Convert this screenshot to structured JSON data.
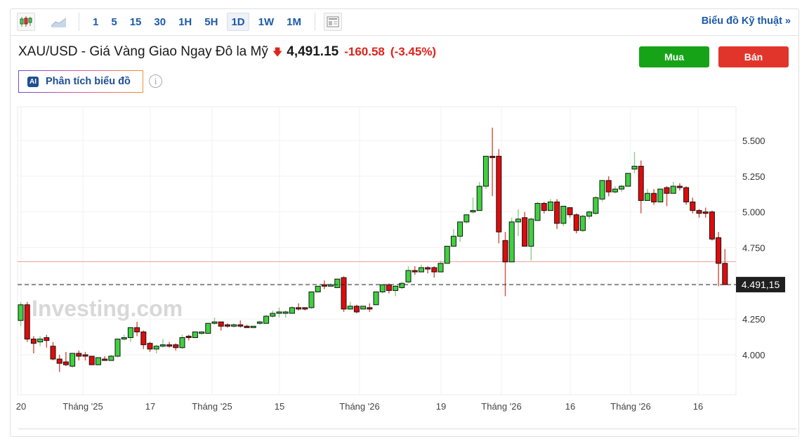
{
  "toolbar": {
    "chart_types": [
      "candlestick-icon",
      "area-chart-icon"
    ],
    "timeframes": [
      "1",
      "5",
      "15",
      "30",
      "1H",
      "5H",
      "1D",
      "1W",
      "1M"
    ],
    "active_timeframe": "1D",
    "technical_link": "Biểu đồ Kỹ thuật »"
  },
  "header": {
    "title": "XAU/USD - Giá Vàng Giao Ngay Đô la Mỹ",
    "price": "4,491.15",
    "change": "-160.58",
    "change_pct": "(-3.45%)",
    "buy_label": "Mua",
    "sell_label": "Bán",
    "ai_badge": "AI",
    "ai_label": "Phân tích biểu đồ",
    "info_icon": "i"
  },
  "colors": {
    "up": "#3fd13f",
    "down": "#e00b0b",
    "buy": "#17a317",
    "sell": "#e1352b",
    "link": "#1d5aa8"
  },
  "chart_data": {
    "type": "candlestick",
    "watermark": "Investing.com",
    "last_price_label": "4.491,15",
    "last_price": 4491.15,
    "previous_close": 4651.73,
    "ylim": [
      3800,
      5700
    ],
    "yticks": [
      {
        "v": 4000,
        "label": "4.000"
      },
      {
        "v": 4250,
        "label": "4.250"
      },
      {
        "v": 4500,
        "label": ""
      },
      {
        "v": 4750,
        "label": "4.750"
      },
      {
        "v": 5000,
        "label": "5.000"
      },
      {
        "v": 5250,
        "label": "5.250"
      },
      {
        "v": 5500,
        "label": "5.500"
      }
    ],
    "xlabels": [
      "20",
      "Tháng '25",
      "17",
      "Tháng '25",
      "15",
      "Tháng '26",
      "19",
      "Tháng '26",
      "16",
      "Tháng '26",
      "16"
    ],
    "candles_ohlc": [
      [
        4240,
        4370,
        4200,
        4350
      ],
      [
        4350,
        4370,
        4090,
        4110
      ],
      [
        4110,
        4130,
        4010,
        4080
      ],
      [
        4090,
        4130,
        4060,
        4110
      ],
      [
        4120,
        4140,
        4050,
        4100
      ],
      [
        4060,
        4090,
        3960,
        3970
      ],
      [
        3970,
        4000,
        3880,
        3940
      ],
      [
        3950,
        4020,
        3920,
        3930
      ],
      [
        3920,
        4010,
        3910,
        4010
      ],
      [
        4010,
        4030,
        3960,
        3990
      ],
      [
        4000,
        4020,
        3960,
        3990
      ],
      [
        3990,
        3990,
        3930,
        3930
      ],
      [
        3930,
        3980,
        3930,
        3980
      ],
      [
        3970,
        3990,
        3960,
        3960
      ],
      [
        3960,
        4000,
        3960,
        3990
      ],
      [
        3990,
        4110,
        3980,
        4110
      ],
      [
        4110,
        4140,
        4100,
        4120
      ],
      [
        4120,
        4190,
        4090,
        4190
      ],
      [
        4190,
        4230,
        4130,
        4160
      ],
      [
        4160,
        4170,
        4040,
        4070
      ],
      [
        4080,
        4090,
        4020,
        4040
      ],
      [
        4040,
        4070,
        4010,
        4060
      ],
      [
        4060,
        4110,
        4050,
        4070
      ],
      [
        4070,
        4090,
        4050,
        4060
      ],
      [
        4070,
        4080,
        4030,
        4050
      ],
      [
        4050,
        4140,
        4040,
        4120
      ],
      [
        4130,
        4140,
        4100,
        4120
      ],
      [
        4120,
        4160,
        4120,
        4160
      ],
      [
        4150,
        4160,
        4140,
        4160
      ],
      [
        4150,
        4220,
        4150,
        4220
      ],
      [
        4220,
        4260,
        4210,
        4230
      ],
      [
        4230,
        4230,
        4170,
        4200
      ],
      [
        4210,
        4220,
        4190,
        4200
      ],
      [
        4200,
        4220,
        4190,
        4210
      ],
      [
        4210,
        4240,
        4190,
        4200
      ],
      [
        4200,
        4210,
        4190,
        4190
      ],
      [
        4190,
        4200,
        4190,
        4200
      ],
      [
        4220,
        4240,
        4210,
        4230
      ],
      [
        4220,
        4280,
        4220,
        4270
      ],
      [
        4270,
        4310,
        4260,
        4290
      ],
      [
        4290,
        4330,
        4260,
        4300
      ],
      [
        4290,
        4310,
        4260,
        4300
      ],
      [
        4290,
        4340,
        4290,
        4330
      ],
      [
        4330,
        4360,
        4310,
        4320
      ],
      [
        4330,
        4330,
        4310,
        4320
      ],
      [
        4330,
        4440,
        4320,
        4440
      ],
      [
        4440,
        4480,
        4440,
        4480
      ],
      [
        4490,
        4520,
        4460,
        4480
      ],
      [
        4480,
        4500,
        4480,
        4490
      ],
      [
        4470,
        4530,
        4470,
        4530
      ],
      [
        4540,
        4550,
        4300,
        4320
      ],
      [
        4320,
        4370,
        4320,
        4340
      ],
      [
        4340,
        4350,
        4290,
        4300
      ],
      [
        4320,
        4340,
        4320,
        4340
      ],
      [
        4330,
        4360,
        4300,
        4320
      ],
      [
        4350,
        4440,
        4350,
        4440
      ],
      [
        4440,
        4490,
        4430,
        4490
      ],
      [
        4490,
        4500,
        4430,
        4450
      ],
      [
        4450,
        4490,
        4410,
        4480
      ],
      [
        4470,
        4510,
        4460,
        4500
      ],
      [
        4510,
        4620,
        4500,
        4590
      ],
      [
        4590,
        4620,
        4560,
        4580
      ],
      [
        4580,
        4630,
        4580,
        4610
      ],
      [
        4610,
        4620,
        4570,
        4600
      ],
      [
        4610,
        4620,
        4540,
        4580
      ],
      [
        4580,
        4660,
        4580,
        4640
      ],
      [
        4640,
        4760,
        4640,
        4760
      ],
      [
        4760,
        4880,
        4760,
        4830
      ],
      [
        4830,
        4930,
        4790,
        4930
      ],
      [
        4930,
        4980,
        4920,
        4980
      ],
      [
        5000,
        5100,
        4990,
        5010
      ],
      [
        5010,
        5210,
        5010,
        5180
      ],
      [
        5180,
        5390,
        5160,
        5390
      ],
      [
        5390,
        5590,
        5110,
        5380
      ],
      [
        5390,
        5440,
        4780,
        4860
      ],
      [
        4800,
        4860,
        4410,
        4650
      ],
      [
        4650,
        4960,
        4650,
        4930
      ],
      [
        4930,
        5020,
        4830,
        4950
      ],
      [
        4960,
        5000,
        4760,
        4760
      ],
      [
        4760,
        4960,
        4660,
        4950
      ],
      [
        4940,
        5070,
        4940,
        5060
      ],
      [
        5060,
        5070,
        4990,
        5010
      ],
      [
        5010,
        5090,
        5010,
        5070
      ],
      [
        5070,
        5090,
        4880,
        4920
      ],
      [
        4920,
        5040,
        4900,
        5040
      ],
      [
        5030,
        5030,
        4960,
        4980
      ],
      [
        4980,
        4990,
        4850,
        4870
      ],
      [
        4870,
        4980,
        4860,
        4970
      ],
      [
        4970,
        5010,
        4950,
        5000
      ],
      [
        4990,
        5110,
        4980,
        5100
      ],
      [
        5090,
        5220,
        5070,
        5220
      ],
      [
        5220,
        5250,
        5110,
        5140
      ],
      [
        5140,
        5180,
        5130,
        5160
      ],
      [
        5160,
        5190,
        5140,
        5180
      ],
      [
        5180,
        5270,
        5180,
        5270
      ],
      [
        5300,
        5420,
        5270,
        5320
      ],
      [
        5320,
        5360,
        4990,
        5080
      ],
      [
        5080,
        5160,
        5080,
        5130
      ],
      [
        5130,
        5160,
        5050,
        5070
      ],
      [
        5070,
        5160,
        5070,
        5160
      ],
      [
        5170,
        5180,
        5040,
        5130
      ],
      [
        5130,
        5210,
        5130,
        5180
      ],
      [
        5180,
        5200,
        5150,
        5170
      ],
      [
        5170,
        5180,
        5050,
        5070
      ],
      [
        5070,
        5100,
        4990,
        5010
      ],
      [
        5010,
        5020,
        4960,
        4990
      ],
      [
        5000,
        5030,
        4960,
        4990
      ],
      [
        5000,
        5010,
        4800,
        4810
      ],
      [
        4820,
        4860,
        4480,
        4640
      ],
      [
        4640,
        4740,
        4491,
        4491
      ]
    ]
  }
}
